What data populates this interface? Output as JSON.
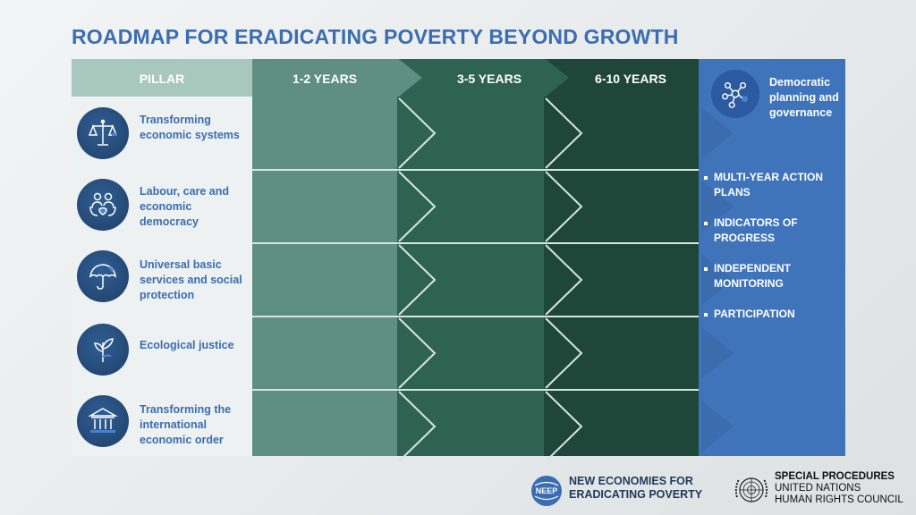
{
  "title": "ROADMAP FOR ERADICATING POVERTY BEYOND GROWTH",
  "header": {
    "pillar": "PILLAR",
    "periods": [
      "1-2 YEARS",
      "3-5 YEARS",
      "6-10 YEARS"
    ]
  },
  "pillars": [
    {
      "label": "Transforming economic systems",
      "icon": "scales-icon"
    },
    {
      "label": "Labour, care and economic democracy",
      "icon": "people-heart-icon"
    },
    {
      "label": "Universal basic services and social protection",
      "icon": "umbrella-icon"
    },
    {
      "label": "Ecological justice",
      "icon": "plant-icon"
    },
    {
      "label": "Transforming the international economic order",
      "icon": "institution-icon"
    }
  ],
  "governance": {
    "title": "Democratic planning and governance",
    "icon": "network-icon",
    "items": [
      "MULTI-YEAR ACTION PLANS",
      "INDICATORS OF PROGRESS",
      "INDEPENDENT MONITORING",
      "PARTICIPATION"
    ]
  },
  "footer": {
    "neep_line1": "NEW ECONOMIES FOR",
    "neep_line2": "ERADICATING POVERTY",
    "neep_badge": "NEEP",
    "sp_line1": "SPECIAL PROCEDURES",
    "sp_line2": "UNITED NATIONS",
    "sp_line3": "HUMAN RIGHTS COUNCIL"
  },
  "colors": {
    "title": "#3a6db2",
    "col1": "#5e8f80",
    "col2": "#2e6352",
    "col3": "#1f4739",
    "header_pillar": "#a9c8bd",
    "pillar_bg": "#edf1f1",
    "governance": "#3f74bb"
  }
}
